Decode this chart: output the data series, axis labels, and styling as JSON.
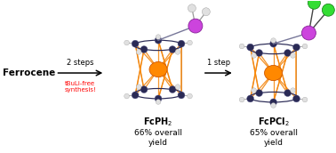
{
  "bg_color": "#ffffff",
  "ferrocene_label": "Ferrocene",
  "arrow1_label": "2 steps",
  "arrow1_sublabel": "tBuLi-free\nsynthesis!",
  "arrow1_sublabel_color": "#ff0000",
  "arrow2_label": "1 step",
  "mol1_label": "FcPH$_2$",
  "mol1_sub1": "66% overall",
  "mol1_sub2": "yield",
  "mol2_label": "FcPCl$_2$",
  "mol2_sub1": "65% overall",
  "mol2_sub2": "yield",
  "label_color": "#000000",
  "orange_color": "#ff8800",
  "iron_color": "#ff8800",
  "dark_orange": "#cc5500",
  "ring_dark": "#2a2a55",
  "ring_mid": "#555588",
  "ring_light": "#8888bb",
  "h_color": "#e0e0e0",
  "h_edge": "#999999",
  "p_color": "#cc44dd",
  "p_edge": "#882299",
  "cl_color": "#33dd33",
  "cl_edge": "#117711",
  "bond_color_gray": "#777799"
}
